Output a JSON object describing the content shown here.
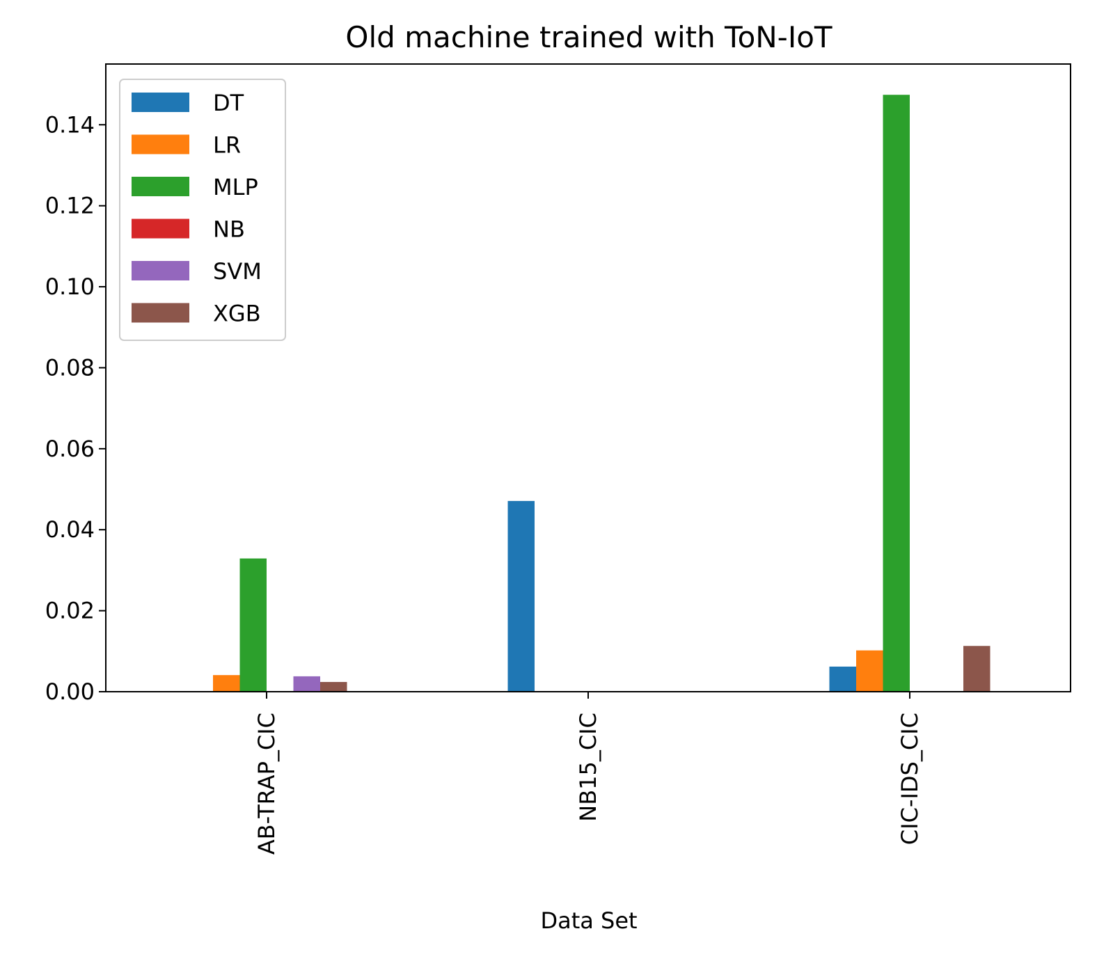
{
  "chart_data": {
    "type": "bar",
    "title": "Old machine trained with ToN-IoT",
    "xlabel": "Data Set",
    "ylabel": "",
    "categories": [
      "AB-TRAP_CIC",
      "NB15_CIC",
      "CIC-IDS_CIC"
    ],
    "ylim": [
      0,
      0.155
    ],
    "yticks": [
      0.0,
      0.02,
      0.04,
      0.06,
      0.08,
      0.1,
      0.12,
      0.14
    ],
    "ytick_labels": [
      "0.00",
      "0.02",
      "0.04",
      "0.06",
      "0.08",
      "0.10",
      "0.12",
      "0.14"
    ],
    "grid": false,
    "legend_position": "top-left",
    "series": [
      {
        "name": "DT",
        "color": "#1f77b4",
        "values": [
          0.0,
          0.0471,
          0.0062
        ]
      },
      {
        "name": "LR",
        "color": "#ff7f0e",
        "values": [
          0.0041,
          0.0,
          0.0102
        ]
      },
      {
        "name": "MLP",
        "color": "#2ca02c",
        "values": [
          0.0329,
          0.0,
          0.1474
        ]
      },
      {
        "name": "NB",
        "color": "#d62728",
        "values": [
          0.0,
          0.0,
          0.0
        ]
      },
      {
        "name": "SVM",
        "color": "#9467bd",
        "values": [
          0.0038,
          0.0,
          0.0
        ]
      },
      {
        "name": "XGB",
        "color": "#8c564b",
        "values": [
          0.0024,
          0.0,
          0.0113
        ]
      }
    ]
  }
}
